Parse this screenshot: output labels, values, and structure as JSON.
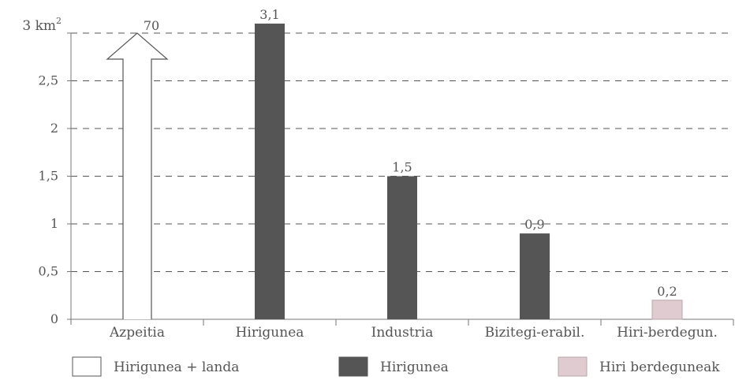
{
  "chart_data": {
    "type": "bar",
    "y_unit_label": "3 km",
    "y_unit_superscript": "2",
    "categories": [
      "Azpeitia",
      "Hirigunea",
      "Industria",
      "Bizitegi-erabil.",
      "Hiri-berdegun."
    ],
    "values": [
      70,
      3.1,
      1.5,
      0.9,
      0.2
    ],
    "value_labels": [
      "70",
      "3,1",
      "1,5",
      "0,9",
      "0,2"
    ],
    "bar_series": [
      "Hirigunea + landa",
      "Hirigunea",
      "Hirigunea",
      "Hirigunea",
      "Hiri berdeguneak"
    ],
    "series": [
      {
        "name": "Hirigunea + landa",
        "style": "outline-arrow",
        "color": "#ffffff",
        "stroke": "#555555"
      },
      {
        "name": "Hirigunea",
        "style": "solid",
        "color": "#555555"
      },
      {
        "name": "Hiri berdeguneak",
        "style": "solid",
        "color": "#e0cbd0"
      }
    ],
    "yticks": [
      0,
      0.5,
      1,
      1.5,
      2,
      2.5,
      3
    ],
    "ytick_labels": [
      "0",
      "0,5",
      "1",
      "1,5",
      "2",
      "2,5",
      ""
    ],
    "ylim": [
      0,
      3
    ],
    "grid": "dashed-horizontal",
    "legend_position": "bottom",
    "colors": {
      "axis": "#777777",
      "grid": "#555555",
      "text": "#555555",
      "bar_dark": "#555555",
      "bar_pink": "#e0cbd0",
      "arrow_stroke": "#555555"
    }
  }
}
